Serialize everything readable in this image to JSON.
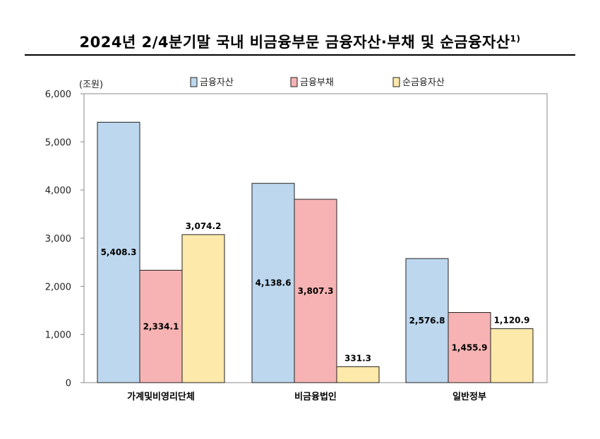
{
  "title": {
    "main": "2024년 2/4분기말 국내 비금융부문 금융자산·부채 및 순금융자산",
    "footnote_mark": "1)"
  },
  "chart_data": {
    "type": "bar",
    "title": "2024년 2/4분기말 국내 비금융부문 금융자산·부채 및 순금융자산",
    "ylabel": "(조원)",
    "xlabel": "",
    "ylim": [
      0,
      6000
    ],
    "yticks": [
      0,
      1000,
      2000,
      3000,
      4000,
      5000,
      6000
    ],
    "ytick_labels": [
      "0",
      "1,000",
      "2,000",
      "3,000",
      "4,000",
      "5,000",
      "6,000"
    ],
    "grid": false,
    "legend_position": "top",
    "categories": [
      "가계및비영리단체",
      "비금융법인",
      "일반정부"
    ],
    "series": [
      {
        "name": "금융자산",
        "color": "#bcd7ee",
        "values": [
          5408.3,
          4138.6,
          2576.8
        ],
        "labels": [
          "5,408.3",
          "4,138.6",
          "2,576.8"
        ]
      },
      {
        "name": "금융부채",
        "color": "#f7b3b3",
        "values": [
          2334.1,
          3807.3,
          1455.9
        ],
        "labels": [
          "2,334.1",
          "3,807.3",
          "1,455.9"
        ]
      },
      {
        "name": "순금융자산",
        "color": "#fde9a9",
        "values": [
          3074.2,
          331.3,
          1120.9
        ],
        "labels": [
          "3,074.2",
          "331.3",
          "1,120.9"
        ]
      }
    ]
  }
}
